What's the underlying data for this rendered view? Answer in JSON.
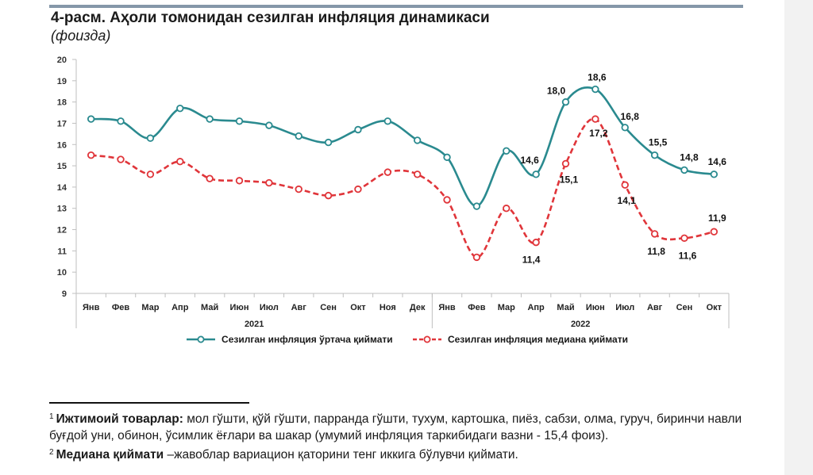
{
  "title": "4-расм. Аҳоли томонидан сезилган инфляция динамикаси",
  "subtitle": "(фоизда)",
  "chart_data": {
    "type": "line",
    "categories": [
      "Янв",
      "Фев",
      "Мар",
      "Апр",
      "Май",
      "Июн",
      "Июл",
      "Авг",
      "Сен",
      "Окт",
      "Ноя",
      "Дек",
      "Янв",
      "Фев",
      "Мар",
      "Апр",
      "Май",
      "Июн",
      "Июл",
      "Авг",
      "Сен",
      "Окт"
    ],
    "year_groups": [
      {
        "label": "2021",
        "count": 12
      },
      {
        "label": "2022",
        "count": 10
      }
    ],
    "y_ticks": [
      "9",
      "10",
      "11",
      "12",
      "13",
      "14",
      "15",
      "16",
      "17",
      "18",
      "19",
      "20"
    ],
    "ylim": [
      9,
      20
    ],
    "grid": false,
    "legend_position": "bottom",
    "series": [
      {
        "name": "Сезилган инфляция ўртача қиймати",
        "color": "#2a8a8f",
        "style": "solid",
        "values": [
          17.2,
          17.1,
          16.3,
          17.7,
          17.2,
          17.1,
          16.9,
          16.4,
          16.1,
          16.7,
          17.1,
          16.2,
          15.4,
          13.1,
          15.7,
          14.6,
          18.0,
          18.6,
          16.8,
          15.5,
          14.8,
          14.6
        ],
        "labels": [
          null,
          null,
          null,
          null,
          null,
          null,
          null,
          null,
          null,
          null,
          null,
          null,
          null,
          null,
          null,
          "14,6",
          "18,0",
          "18,6",
          "16,8",
          "15,5",
          "14,8",
          "14,6"
        ]
      },
      {
        "name": "Сезилган инфляция медиана қиймати",
        "color": "#e0353a",
        "style": "dashed",
        "values": [
          15.5,
          15.3,
          14.6,
          15.2,
          14.4,
          14.3,
          14.2,
          13.9,
          13.6,
          13.9,
          14.7,
          14.6,
          13.4,
          10.7,
          13.0,
          11.4,
          15.1,
          17.2,
          14.1,
          11.8,
          11.6,
          11.9
        ],
        "labels": [
          null,
          null,
          null,
          null,
          null,
          null,
          null,
          null,
          null,
          null,
          null,
          null,
          null,
          null,
          null,
          "11,4",
          "15,1",
          "17,2",
          "14,1",
          "11,8",
          "11,6",
          "11,9"
        ]
      }
    ]
  },
  "footnotes": [
    {
      "sup": "1",
      "bold": "Ижтимоий товарлар:",
      "text": " мол гўшти, қўй гўшти, парранда гўшти, тухум, картошка, пиёз, сабзи, олма, гуруч, биринчи навли буғдой уни, обинон, ўсимлик ёғлари ва шакар (умумий инфляция таркибидаги вазни - 15,4 фоиз)."
    },
    {
      "sup": "2",
      "bold": "Медиана қиймати",
      "text": " –жавоблар вариацион қаторини тенг иккига бўлувчи қиймати."
    }
  ]
}
